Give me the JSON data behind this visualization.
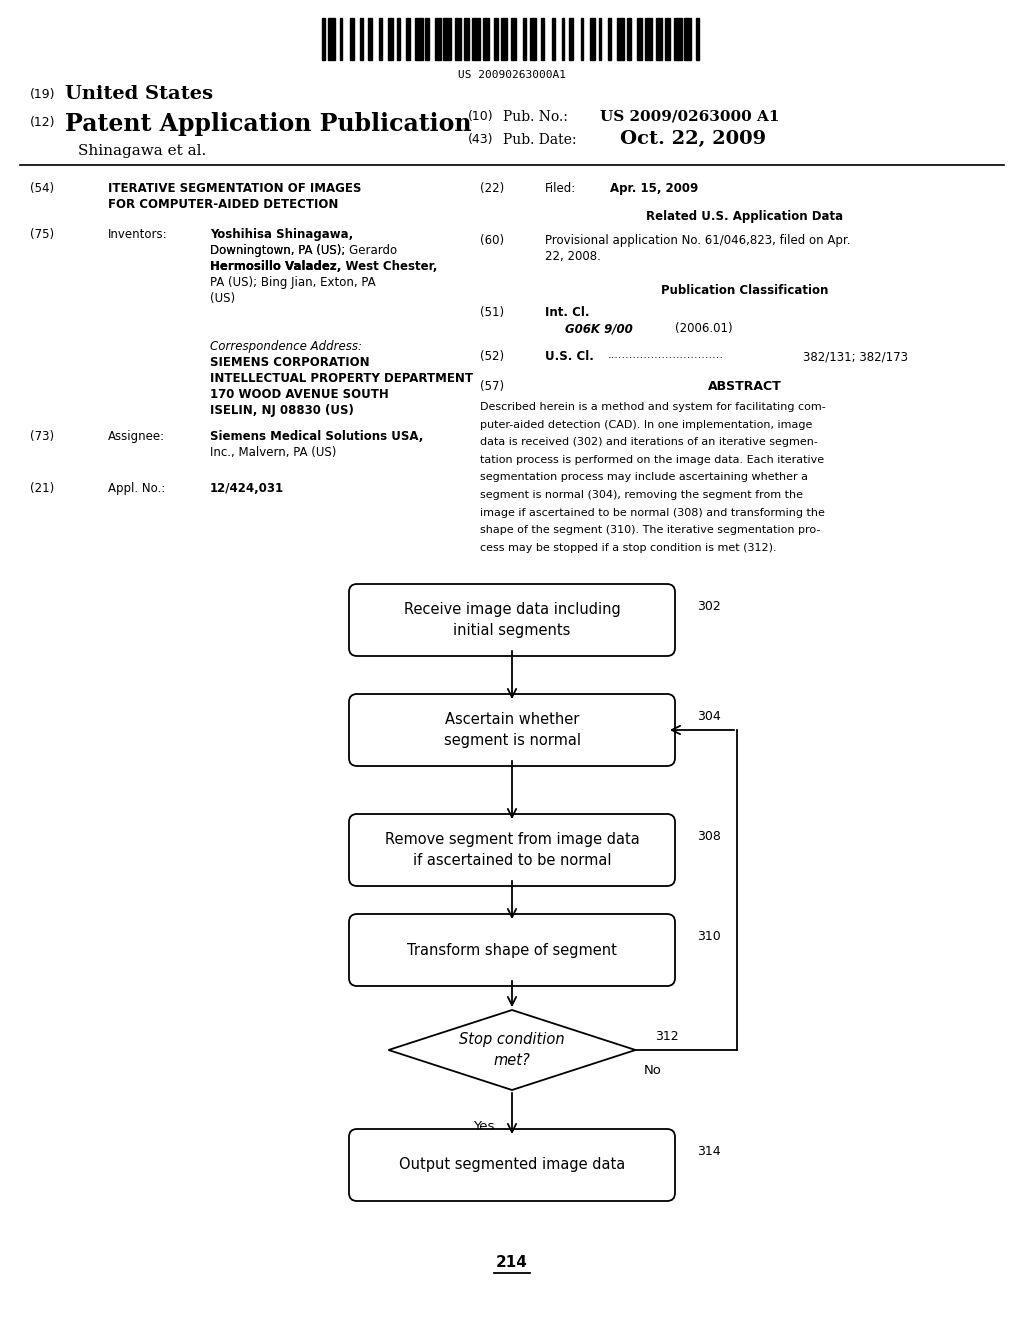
{
  "bg_color": "#ffffff",
  "barcode_text": "US 20090263000A1",
  "section54_title_line1": "ITERATIVE SEGMENTATION OF IMAGES",
  "section54_title_line2": "FOR COMPUTER-AIDED DETECTION",
  "inventors_bold1": "Yoshihisa Shinagawa,",
  "inventors_line2": "Downingtown, PA (US); ",
  "inventors_bold2": "Gerardo",
  "inventors_bold3": "Hermosillo Valadez,",
  "inventors_line3": " West Chester,",
  "inventors_line4": "PA (US); ",
  "inventors_bold4": "Bing Jian,",
  "inventors_line5": " Exton, PA",
  "inventors_line6": "(US)",
  "corr_lines": [
    "Correspondence Address:",
    "SIEMENS CORPORATION",
    "INTELLECTUAL PROPERTY DEPARTMENT",
    "170 WOOD AVENUE SOUTH",
    "ISELIN, NJ 08830 (US)"
  ],
  "assignee_bold": "Siemens Medical Solutions USA,",
  "assignee_normal": "Inc., Malvern, PA (US)",
  "appl_no": "12/424,031",
  "filed_date": "Apr. 15, 2009",
  "section60_val": "Provisional application No. 61/046,823, filed on Apr.\n22, 2008.",
  "section51_class": "G06K 9/00",
  "section51_year": "(2006.01)",
  "section52_val": "382/131; 382/173",
  "abstract_lines": [
    "Described herein is a method and system for facilitating com-",
    "puter-aided detection (CAD). In one implementation, image",
    "data is received (302) and iterations of an iterative segmen-",
    "tation process is performed on the image data. Each iterative",
    "segmentation process may include ascertaining whether a",
    "segment is normal (304), removing the segment from the",
    "image if ascertained to be normal (308) and transforming the",
    "shape of the segment (310). The iterative segmentation pro-",
    "cess may be stopped if a stop condition is met (312)."
  ],
  "flow_label": "214",
  "node_302": "Receive image data including\ninitial segments",
  "node_304": "Ascertain whether\nsegment is normal",
  "node_308": "Remove segment from image data\nif ascertained to be normal",
  "node_310": "Transform shape of segment",
  "node_312": "Stop condition\nmet?",
  "node_314": "Output segmented image data"
}
